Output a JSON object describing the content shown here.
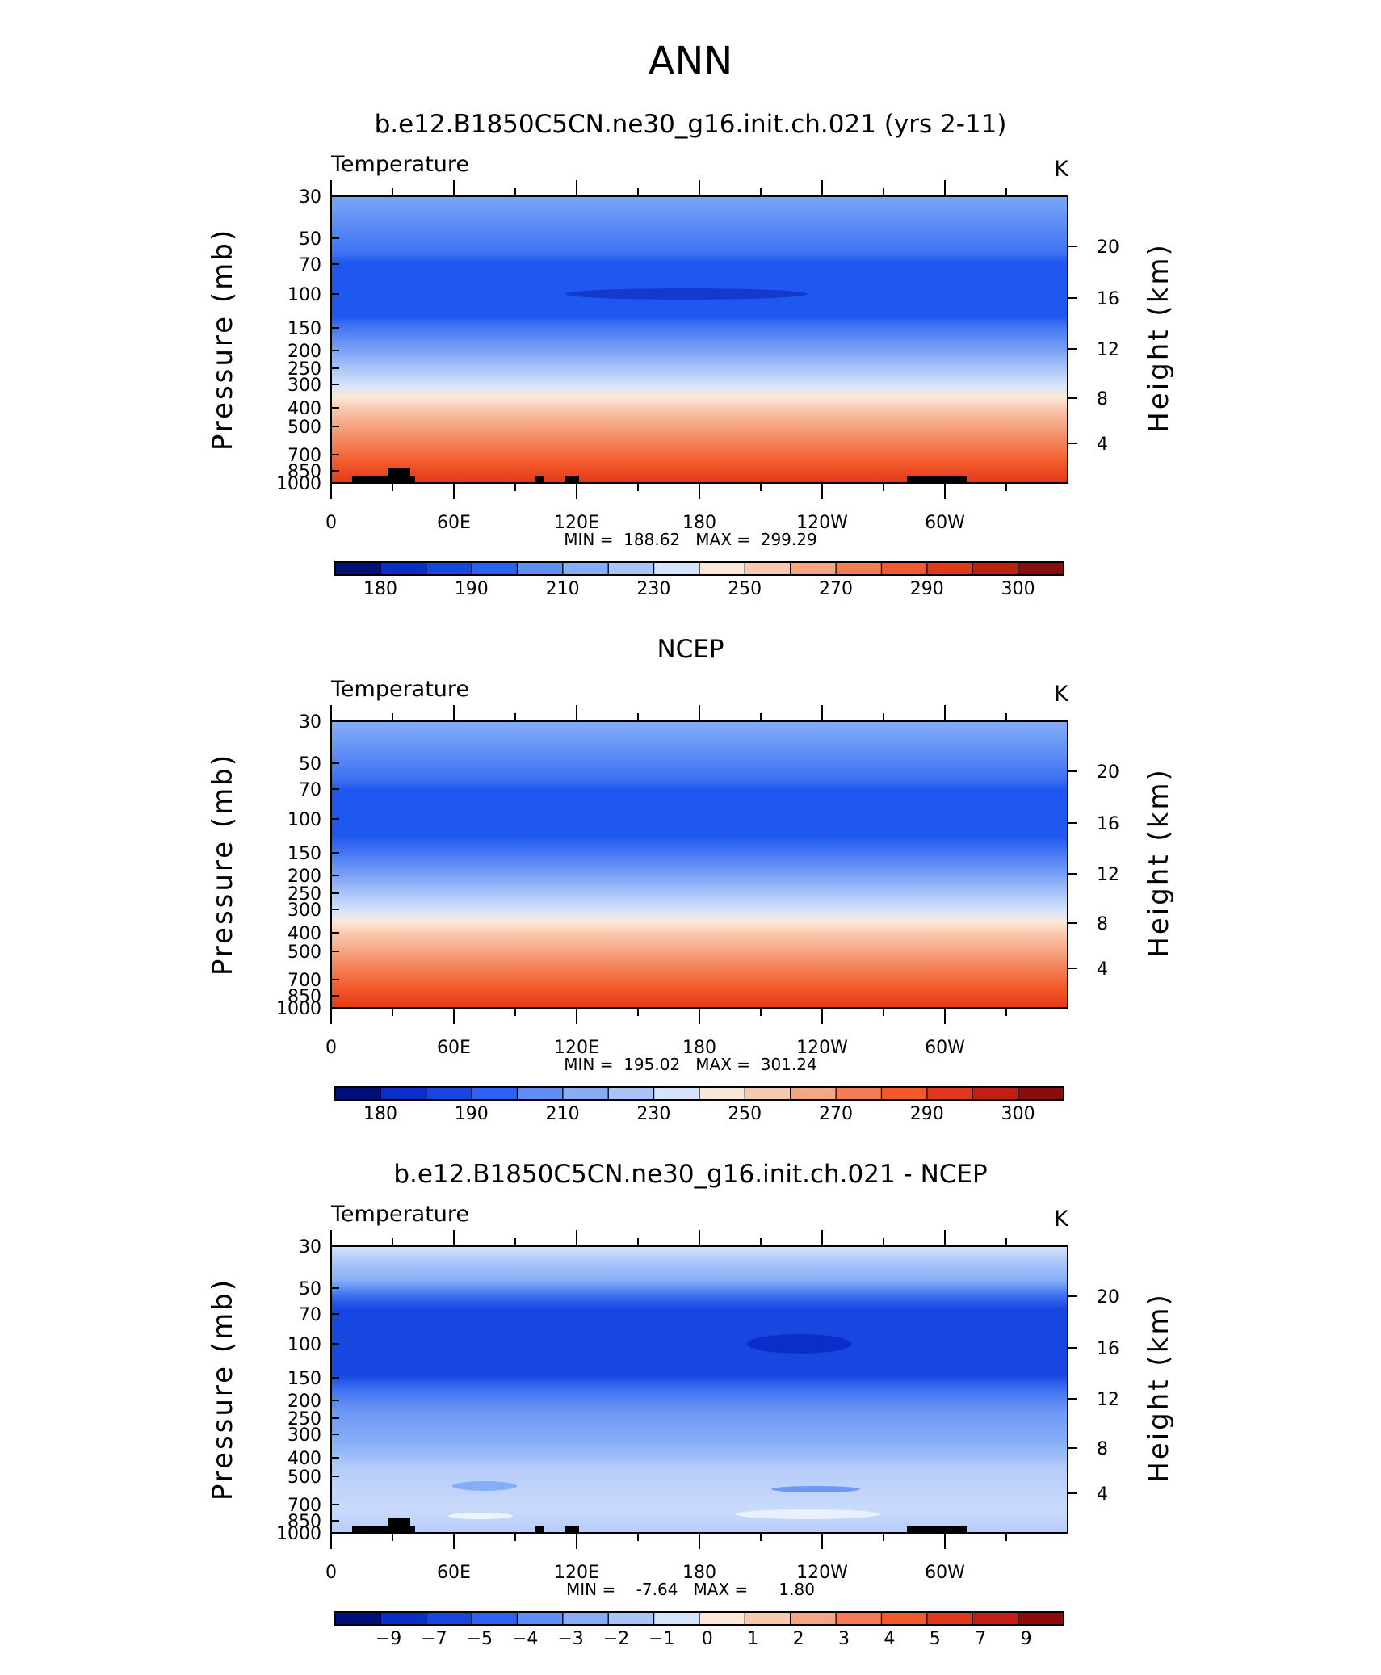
{
  "page": {
    "title": "ANN"
  },
  "panels": [
    {
      "title": "b.e12.B1850C5CN.ne30_g16.init.ch.021 (yrs 2-11)",
      "left_label": "Temperature",
      "right_label": "K",
      "ylabel_left": "Pressure (mb)",
      "ylabel_right": "Height (km)",
      "stats": "MIN =  188.62   MAX =  299.29",
      "colorbar_labels": [
        "180",
        "190",
        "210",
        "230",
        "250",
        "270",
        "290",
        "300"
      ]
    },
    {
      "title": "NCEP",
      "left_label": "Temperature",
      "right_label": "K",
      "ylabel_left": "Pressure (mb)",
      "ylabel_right": "Height (km)",
      "stats": "MIN =  195.02   MAX =  301.24",
      "colorbar_labels": [
        "180",
        "190",
        "210",
        "230",
        "250",
        "270",
        "290",
        "300"
      ]
    },
    {
      "title": "b.e12.B1850C5CN.ne30_g16.init.ch.021 - NCEP",
      "left_label": "Temperature",
      "right_label": "K",
      "ylabel_left": "Pressure (mb)",
      "ylabel_right": "Height (km)",
      "stats": "MIN =    -7.64   MAX =      1.80",
      "colorbar_labels": [
        "−9",
        "−7",
        "−5",
        "−4",
        "−3",
        "−2",
        "−1",
        "0",
        "1",
        "2",
        "3",
        "4",
        "5",
        "7",
        "9"
      ]
    }
  ],
  "chart_data": [
    {
      "type": "heatmap",
      "title": "b.e12.B1850C5CN.ne30_g16.init.ch.021 (yrs 2-11)",
      "variable": "Temperature",
      "units": "K",
      "xlabel": "",
      "ylabel": "Pressure (mb)",
      "ylabel_right": "Height (km)",
      "x_ticks": [
        "0",
        "60E",
        "120E",
        "180",
        "120W",
        "60W"
      ],
      "y_ticks": [
        "30",
        "50",
        "70",
        "100",
        "150",
        "200",
        "250",
        "300",
        "400",
        "500",
        "700",
        "850",
        "1000"
      ],
      "y_ticks_right": [
        "20",
        "16",
        "12",
        "8",
        "4"
      ],
      "min": 188.62,
      "max": 299.29,
      "colorbar_levels": [
        180,
        190,
        210,
        230,
        250,
        270,
        290,
        300
      ],
      "layers": [
        {
          "p": 30,
          "level": 230
        },
        {
          "p": 40,
          "level": 220
        },
        {
          "p": 55,
          "level": 210
        },
        {
          "p": 70,
          "level": 200
        },
        {
          "p": 100,
          "level": 200
        },
        {
          "p": 150,
          "level": 210
        },
        {
          "p": 200,
          "level": 220
        },
        {
          "p": 250,
          "level": 230
        },
        {
          "p": 300,
          "level": 240
        },
        {
          "p": 350,
          "level": 250
        },
        {
          "p": 400,
          "level": 255
        },
        {
          "p": 500,
          "level": 265
        },
        {
          "p": 600,
          "level": 270
        },
        {
          "p": 700,
          "level": 280
        },
        {
          "p": 850,
          "level": 285
        },
        {
          "p": 1000,
          "level": 290
        }
      ]
    },
    {
      "type": "heatmap",
      "title": "NCEP",
      "variable": "Temperature",
      "units": "K",
      "xlabel": "",
      "ylabel": "Pressure (mb)",
      "ylabel_right": "Height (km)",
      "x_ticks": [
        "0",
        "60E",
        "120E",
        "180",
        "120W",
        "60W"
      ],
      "y_ticks": [
        "30",
        "50",
        "70",
        "100",
        "150",
        "200",
        "250",
        "300",
        "400",
        "500",
        "700",
        "850",
        "1000"
      ],
      "y_ticks_right": [
        "20",
        "16",
        "12",
        "8",
        "4"
      ],
      "min": 195.02,
      "max": 301.24,
      "colorbar_levels": [
        180,
        190,
        210,
        230,
        250,
        270,
        290,
        300
      ],
      "layers": [
        {
          "p": 30,
          "level": 230
        },
        {
          "p": 40,
          "level": 220
        },
        {
          "p": 55,
          "level": 210
        },
        {
          "p": 70,
          "level": 200
        },
        {
          "p": 100,
          "level": 200
        },
        {
          "p": 150,
          "level": 210
        },
        {
          "p": 200,
          "level": 220
        },
        {
          "p": 250,
          "level": 230
        },
        {
          "p": 300,
          "level": 240
        },
        {
          "p": 350,
          "level": 250
        },
        {
          "p": 400,
          "level": 255
        },
        {
          "p": 500,
          "level": 265
        },
        {
          "p": 600,
          "level": 270
        },
        {
          "p": 700,
          "level": 280
        },
        {
          "p": 850,
          "level": 285
        },
        {
          "p": 1000,
          "level": 290
        }
      ]
    },
    {
      "type": "heatmap",
      "title": "b.e12.B1850C5CN.ne30_g16.init.ch.021 - NCEP",
      "variable": "Temperature",
      "units": "K",
      "xlabel": "",
      "ylabel": "Pressure (mb)",
      "ylabel_right": "Height (km)",
      "x_ticks": [
        "0",
        "60E",
        "120E",
        "180",
        "120W",
        "60W"
      ],
      "y_ticks": [
        "30",
        "50",
        "70",
        "100",
        "150",
        "200",
        "250",
        "300",
        "400",
        "500",
        "700",
        "850",
        "1000"
      ],
      "y_ticks_right": [
        "20",
        "16",
        "12",
        "8",
        "4"
      ],
      "min": -7.64,
      "max": 1.8,
      "colorbar_levels": [
        -9,
        -7,
        -5,
        -4,
        -3,
        -2,
        -1,
        0,
        1,
        2,
        3,
        4,
        5,
        7,
        9
      ],
      "layers": [
        {
          "p": 30,
          "level": -1
        },
        {
          "p": 40,
          "level": -2
        },
        {
          "p": 50,
          "level": -3
        },
        {
          "p": 60,
          "level": -4
        },
        {
          "p": 70,
          "level": -5
        },
        {
          "p": 150,
          "level": -4
        },
        {
          "p": 200,
          "level": -3
        },
        {
          "p": 300,
          "level": -2
        },
        {
          "p": 500,
          "level": -1
        },
        {
          "p": 850,
          "level": 0
        },
        {
          "p": 1000,
          "level": -1
        }
      ]
    }
  ]
}
